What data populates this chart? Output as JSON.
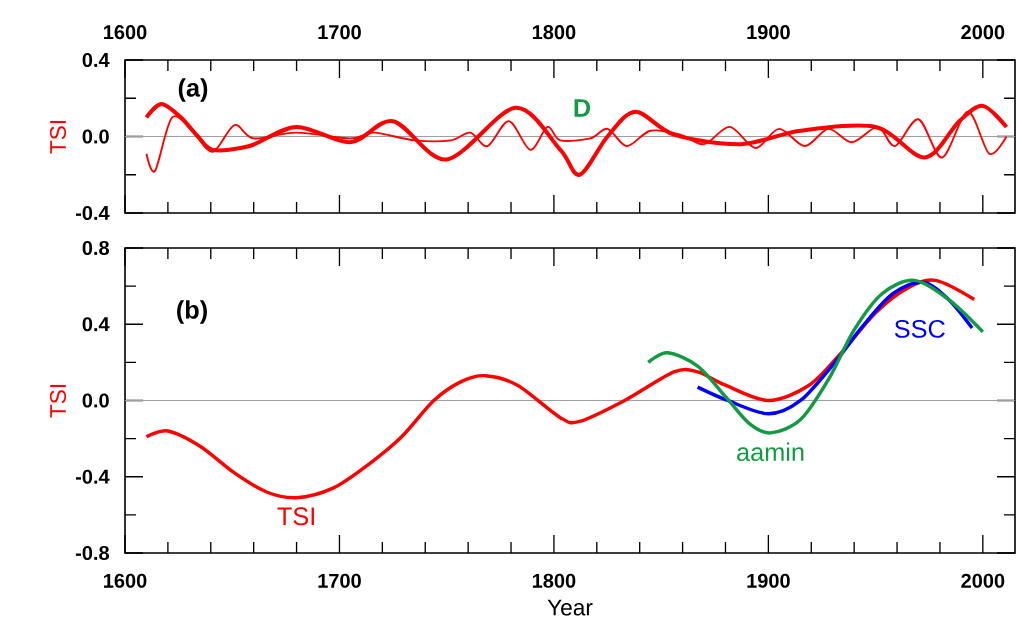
{
  "chart_data": [
    {
      "type": "line",
      "ylabel": "TSI",
      "xlim": [
        1600,
        2015
      ],
      "xticks": [
        1600,
        1700,
        1800,
        1900,
        2000
      ],
      "ylim": [
        -0.4,
        0.4
      ],
      "yticks": [
        {
          "value": -0.4,
          "label": "-0.4"
        },
        {
          "value": 0,
          "label": "0.0"
        },
        {
          "value": 0.4,
          "label": "0.4"
        }
      ],
      "ref_lines": [
        {
          "axis": "y",
          "value": 0,
          "color": "#a0a0a0"
        }
      ],
      "annotations": [
        "(a)",
        "D"
      ],
      "series": [
        {
          "color": "#ff0000",
          "x": [
            1610,
            1617,
            1626,
            1634,
            1641,
            1658,
            1680,
            1705,
            1725,
            1750,
            1782,
            1803,
            1812,
            1825,
            1838,
            1856,
            1887,
            1915,
            1950,
            1973,
            1989,
            2000,
            2011
          ],
          "values": [
            0.1,
            0.17,
            0.1,
            0.0,
            -0.07,
            -0.05,
            0.05,
            -0.03,
            0.08,
            -0.12,
            0.15,
            -0.07,
            -0.2,
            0.0,
            0.13,
            0.01,
            -0.04,
            0.03,
            0.05,
            -0.11,
            0.08,
            0.16,
            0.05
          ]
        },
        {
          "color": "#ff0000",
          "x": [
            1610,
            1614,
            1622,
            1632,
            1641,
            1651,
            1660,
            1680,
            1705,
            1716,
            1735,
            1752,
            1761,
            1769,
            1779,
            1789,
            1797,
            1803,
            1817,
            1825,
            1834,
            1845,
            1859,
            1870,
            1882,
            1894,
            1905,
            1917,
            1928,
            1939,
            1951,
            1959,
            1970,
            1981,
            1993,
            2003,
            2011
          ],
          "values": [
            -0.09,
            -0.18,
            0.1,
            0.02,
            -0.08,
            0.06,
            -0.01,
            0.02,
            -0.01,
            0.02,
            -0.02,
            -0.02,
            0.02,
            -0.05,
            0.08,
            -0.07,
            0.05,
            -0.02,
            -0.01,
            0.04,
            -0.05,
            0.03,
            0.01,
            -0.04,
            0.05,
            -0.06,
            0.04,
            -0.05,
            0.04,
            -0.03,
            0.05,
            -0.05,
            0.09,
            -0.11,
            0.13,
            -0.09,
            0.0
          ]
        }
      ]
    },
    {
      "type": "line",
      "ylabel": "TSI",
      "xlabel": "Year",
      "xlim": [
        1600,
        2015
      ],
      "xticks": [
        1600,
        1700,
        1800,
        1900,
        2000
      ],
      "ylim": [
        -0.8,
        0.8
      ],
      "yticks": [
        {
          "value": -0.8,
          "label": "-0.8"
        },
        {
          "value": -0.4,
          "label": "-0.4"
        },
        {
          "value": 0,
          "label": "0.0"
        },
        {
          "value": 0.4,
          "label": "0.4"
        },
        {
          "value": 0.8,
          "label": "0.8"
        }
      ],
      "ref_lines": [
        {
          "axis": "y",
          "value": 0,
          "color": "#a0a0a0"
        }
      ],
      "annotations": [
        "(b)"
      ],
      "series": [
        {
          "name": "TSI",
          "color": "#ff0000",
          "x": [
            1610,
            1620,
            1635,
            1651,
            1666,
            1680,
            1697,
            1713,
            1729,
            1744,
            1757,
            1768,
            1783,
            1803,
            1812,
            1833,
            1856,
            1867,
            1880,
            1900,
            1919,
            1934,
            1950,
            1965,
            1978,
            1996
          ],
          "values": [
            -0.19,
            -0.16,
            -0.24,
            -0.38,
            -0.48,
            -0.51,
            -0.46,
            -0.34,
            -0.19,
            0.0,
            0.1,
            0.13,
            0.08,
            -0.09,
            -0.11,
            0.0,
            0.15,
            0.15,
            0.08,
            0.0,
            0.08,
            0.25,
            0.46,
            0.59,
            0.63,
            0.53
          ]
        },
        {
          "name": "SSC",
          "color": "#0000ff",
          "x": [
            1867,
            1881,
            1900,
            1915,
            1931,
            1944,
            1958,
            1972,
            1984,
            1995
          ],
          "values": [
            0.07,
            0.0,
            -0.07,
            0.0,
            0.2,
            0.39,
            0.56,
            0.62,
            0.53,
            0.38
          ]
        },
        {
          "name": "aamin",
          "color": "#139a43",
          "x": [
            1844,
            1853,
            1867,
            1880,
            1891,
            1901,
            1915,
            1928,
            1940,
            1953,
            1968,
            1984,
            2000
          ],
          "values": [
            0.2,
            0.25,
            0.18,
            0.02,
            -0.12,
            -0.17,
            -0.1,
            0.11,
            0.37,
            0.56,
            0.63,
            0.53,
            0.36
          ]
        }
      ]
    }
  ]
}
